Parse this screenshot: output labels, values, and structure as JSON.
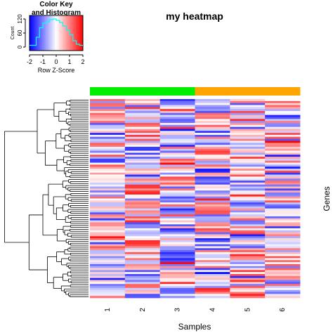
{
  "chart_data": {
    "type": "heatmap",
    "title": "my heatmap",
    "xlabel": "Samples",
    "ylabel": "Genes",
    "columns": [
      "1",
      "2",
      "3",
      "4",
      "5",
      "6"
    ],
    "column_groups": [
      {
        "columns": [
          "1",
          "2",
          "3"
        ],
        "color": "#00ee00"
      },
      {
        "columns": [
          "4",
          "5",
          "6"
        ],
        "color": "#ffa500"
      }
    ],
    "row_count": 100,
    "row_labels_shown": false,
    "row_dendrogram": true,
    "color_scale": {
      "low": "#0000ff",
      "mid": "#ffffff",
      "high": "#ff0000",
      "range": [
        -2,
        2
      ]
    },
    "color_key": {
      "title": "Color Key\nand Histogram",
      "xlabel": "Row Z-Score",
      "ylabel": "Count",
      "xticks": [
        "-2",
        "-1",
        "0",
        "1",
        "2"
      ],
      "yticks": [
        "0",
        "60",
        "120"
      ],
      "histogram_color": "#00ffff"
    },
    "values_note_free": true
  }
}
